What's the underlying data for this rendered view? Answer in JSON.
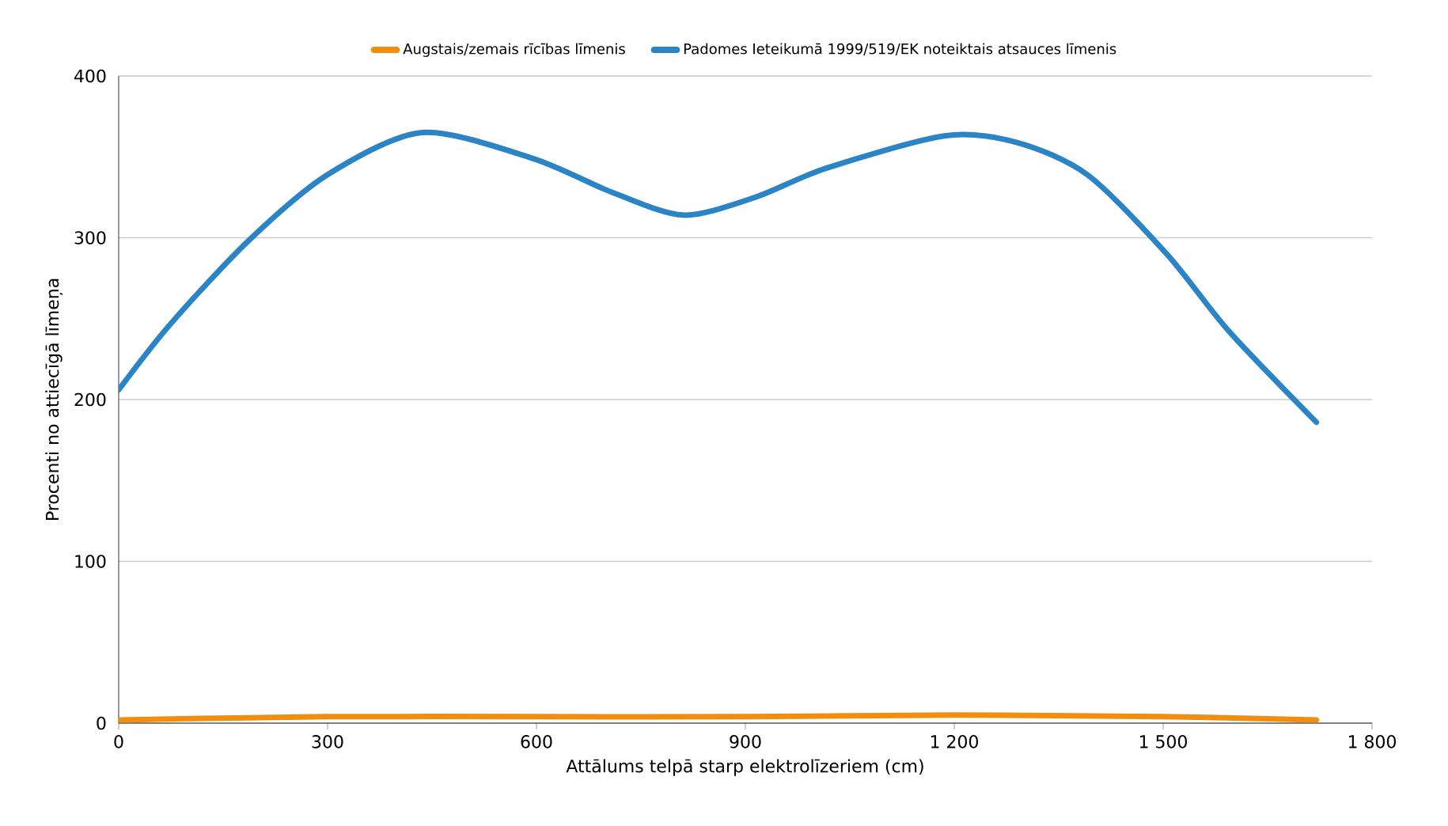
{
  "chart_data": {
    "type": "line",
    "xlabel": "Attālums telpā starp elektrolīzeriem (cm)",
    "ylabel": "Procenti no attiecīgā līmeņa",
    "xlim": [
      0,
      1800
    ],
    "ylim": [
      0,
      400
    ],
    "xticks": [
      0,
      300,
      600,
      900,
      {
        "value": 1200,
        "label": "1 200"
      },
      {
        "value": 1500,
        "label": "1 500"
      },
      {
        "value": 1800,
        "label": "1 800"
      }
    ],
    "yticks": [
      0,
      100,
      200,
      300,
      400
    ],
    "grid": "y",
    "legend": "top",
    "marker": "none",
    "line_style": "solid",
    "series": [
      {
        "name": "Augstais/zemais rīcības līmenis",
        "color": "#f28e0e",
        "x": [
          0,
          300,
          600,
          900,
          1200,
          1500,
          1720
        ],
        "values": [
          2,
          4,
          4,
          4,
          5,
          4,
          2
        ]
      },
      {
        "name": "Padomes Ieteikumā 1999/519/EK noteiktais atsauces līmenis",
        "color": "#2a84c6",
        "x": [
          0,
          73,
          186,
          300,
          436,
          595,
          709,
          811,
          914,
          1016,
          1186,
          1289,
          1391,
          1505,
          1595,
          1720
        ],
        "values": [
          206,
          246,
          298,
          339,
          365,
          349,
          328,
          314,
          325,
          343,
          363,
          359,
          339,
          290,
          242,
          186
        ]
      }
    ]
  }
}
